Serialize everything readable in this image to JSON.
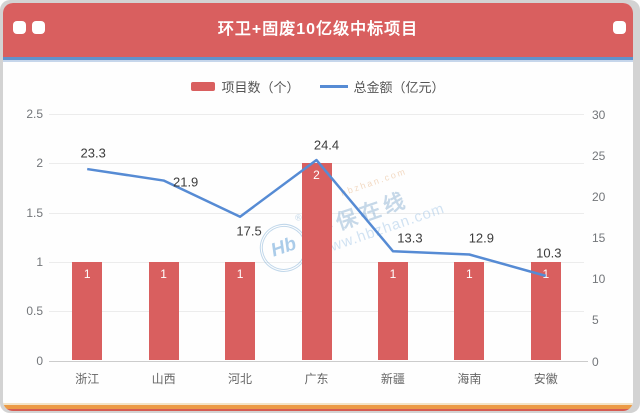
{
  "colors": {
    "header": "#d95f5f",
    "bar": "#d95f5f",
    "line": "#568bd4",
    "header_underline": "#6191cb",
    "grid": "#ececec"
  },
  "header": {
    "title": "环卫+固废10亿级中标项目"
  },
  "legend": {
    "items": [
      {
        "label": "项目数（个）",
        "type": "bar",
        "color": "#d95f5f"
      },
      {
        "label": "总金额（亿元）",
        "type": "line",
        "color": "#568bd4"
      }
    ]
  },
  "watermark": {
    "logo_text": "Hb",
    "registered": "®",
    "brand": "环保在线",
    "url": "www.hbzhan.com",
    "secondary": "hbzhan.com"
  },
  "chart_data": {
    "type": "bar+line",
    "title": "环卫+固废10亿级中标项目",
    "categories": [
      "浙江",
      "山西",
      "河北",
      "广东",
      "新疆",
      "海南",
      "安徽"
    ],
    "series": [
      {
        "name": "项目数（个）",
        "type": "bar",
        "axis": "left",
        "color": "#d95f5f",
        "values": [
          1,
          1,
          1,
          2,
          1,
          1,
          1
        ]
      },
      {
        "name": "总金额（亿元）",
        "type": "line",
        "axis": "right",
        "color": "#568bd4",
        "values": [
          23.3,
          21.9,
          17.5,
          24.4,
          13.3,
          12.9,
          10.3
        ]
      }
    ],
    "left_axis": {
      "min": 0,
      "max": 2.5,
      "ticks": [
        0,
        0.5,
        1,
        1.5,
        2,
        2.5
      ]
    },
    "right_axis": {
      "min": 0,
      "max": 30,
      "ticks": [
        0,
        5,
        10,
        15,
        20,
        25,
        30
      ]
    },
    "grid": true,
    "legend_position": "top",
    "xlabel": "",
    "ylabel_left": "项目数（个）",
    "ylabel_right": "总金额（亿元）"
  }
}
